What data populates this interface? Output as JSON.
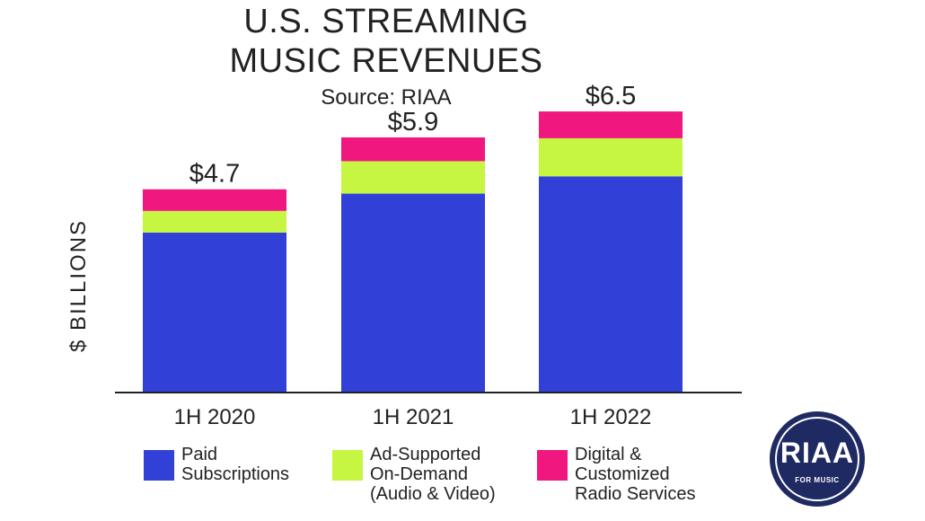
{
  "title_lines": [
    "U.S. STREAMING",
    "MUSIC REVENUES"
  ],
  "subtitle": "Source: RIAA",
  "logo": {
    "main": "RIAA",
    "sub": "FOR MUSIC",
    "color": "#1f2a63"
  },
  "chart_data": {
    "type": "bar",
    "stacked": true,
    "title": "U.S. STREAMING MUSIC REVENUES",
    "subtitle": "Source: RIAA",
    "ylabel": "$ BILLIONS",
    "xlabel": "",
    "categories": [
      "1H 2020",
      "1H 2021",
      "1H 2022"
    ],
    "totals_labels": [
      "$4.7",
      "$5.9",
      "$6.5"
    ],
    "ylim": [
      0,
      7
    ],
    "grid": false,
    "legend_position": "bottom",
    "series": [
      {
        "name": "Paid Subscriptions",
        "legend_label": "Paid\nSubscriptions",
        "color": "#3140d6",
        "values": [
          3.7,
          4.6,
          5.0
        ]
      },
      {
        "name": "Ad-Supported On-Demand (Audio & Video)",
        "legend_label": "Ad-Supported\nOn-Demand\n(Audio & Video)",
        "color": "#c6f542",
        "values": [
          0.5,
          0.75,
          0.88
        ]
      },
      {
        "name": "Digital & Customized Radio Services",
        "legend_label": "Digital &\nCustomized\nRadio Services",
        "color": "#f0177e",
        "values": [
          0.5,
          0.55,
          0.62
        ]
      }
    ]
  }
}
